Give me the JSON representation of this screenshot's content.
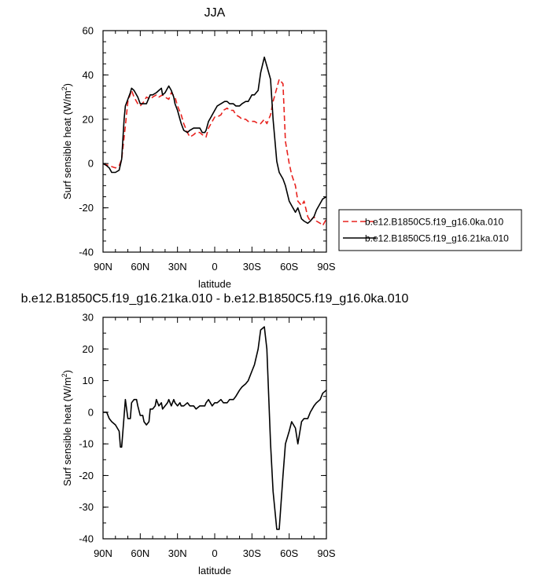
{
  "chart_data": [
    {
      "type": "line",
      "title": "JJA",
      "xlabel": "latitude",
      "ylabel": "Surf sensible heat (W/m",
      "ylabel_sup": "2",
      "ylabel_close": ")",
      "xlim": [
        90,
        -90
      ],
      "ylim": [
        -40,
        60
      ],
      "x_ticks": [
        90,
        60,
        30,
        0,
        -30,
        -60,
        -90
      ],
      "x_tick_labels": [
        "90N",
        "60N",
        "30N",
        "0",
        "30S",
        "60S",
        "90S"
      ],
      "y_ticks": [
        -40,
        -20,
        0,
        20,
        40,
        60
      ],
      "y_tick_labels": [
        "-40",
        "-20",
        "0",
        "20",
        "40",
        "60"
      ],
      "legend": "outside-right",
      "series": [
        {
          "name": "b.e12.B1850C5.f19_g16.0ka.010",
          "color": "#e8231f",
          "dash": "dashed",
          "x": [
            90,
            85,
            80,
            77,
            75,
            72,
            70,
            67,
            65,
            62,
            60,
            57,
            55,
            52,
            50,
            47,
            45,
            42,
            40,
            37,
            35,
            32,
            30,
            27,
            25,
            22,
            20,
            17,
            15,
            12,
            10,
            7,
            5,
            2,
            0,
            -2,
            -5,
            -7,
            -10,
            -12,
            -15,
            -17,
            -20,
            -22,
            -25,
            -27,
            -30,
            -32,
            -35,
            -37,
            -40,
            -42,
            -45,
            -47,
            -50,
            -52,
            -55,
            -57,
            -60,
            -62,
            -65,
            -67,
            -70,
            -72,
            -75,
            -77,
            -80,
            -82,
            -85,
            -87,
            -90
          ],
          "y": [
            0,
            -1,
            -2,
            -1,
            2,
            17,
            28,
            33,
            30,
            27,
            26,
            28,
            30,
            29,
            30,
            31,
            30,
            31,
            30,
            29,
            32,
            30,
            26,
            22,
            18,
            14,
            12,
            13,
            14,
            14,
            13,
            12,
            16,
            19,
            21,
            21,
            22,
            24,
            25,
            24,
            24,
            22,
            21,
            20,
            20,
            19,
            19,
            19,
            18,
            18,
            20,
            18,
            22,
            28,
            34,
            38,
            36,
            10,
            0,
            -5,
            -10,
            -17,
            -19,
            -17,
            -24,
            -26,
            -24,
            -26,
            -27,
            -28,
            -25
          ]
        },
        {
          "name": "b.e12.B1850C5.f19_g16.21ka.010",
          "color": "#000000",
          "dash": "solid",
          "x": [
            90,
            87,
            85,
            83,
            80,
            77,
            75,
            73,
            72,
            70,
            68,
            67,
            65,
            62,
            60,
            58,
            57,
            55,
            52,
            50,
            47,
            45,
            43,
            42,
            40,
            38,
            37,
            35,
            33,
            32,
            30,
            28,
            27,
            25,
            22,
            20,
            17,
            15,
            12,
            10,
            8,
            7,
            5,
            3,
            2,
            0,
            -2,
            -5,
            -8,
            -10,
            -12,
            -15,
            -17,
            -18,
            -20,
            -22,
            -25,
            -27,
            -30,
            -32,
            -35,
            -37,
            -40,
            -42,
            -45,
            -47,
            -50,
            -52,
            -55,
            -57,
            -60,
            -62,
            -65,
            -67,
            -70,
            -72,
            -75,
            -77,
            -80,
            -82,
            -85,
            -87,
            -90
          ],
          "y": [
            0,
            -1,
            -2,
            -4,
            -4,
            -3,
            2,
            20,
            26,
            29,
            32,
            34,
            33,
            30,
            27,
            27,
            27,
            27,
            31,
            31,
            32,
            33,
            34,
            31,
            32,
            34,
            35,
            33,
            30,
            27,
            24,
            20,
            18,
            15,
            14,
            15,
            16,
            16,
            16,
            14,
            14,
            15,
            19,
            21,
            22,
            24,
            26,
            27,
            28,
            28,
            27,
            27,
            26,
            26,
            26,
            27,
            28,
            28,
            31,
            31,
            33,
            41,
            48,
            44,
            38,
            20,
            1,
            -4,
            -7,
            -10,
            -17,
            -19,
            -22,
            -20,
            -25,
            -26,
            -27,
            -26,
            -24,
            -21,
            -18,
            -16,
            -15
          ]
        }
      ]
    },
    {
      "type": "line",
      "title": "b.e12.B1850C5.f19_g16.21ka.010 - b.e12.B1850C5.f19_g16.0ka.010",
      "xlabel": "latitude",
      "ylabel": "Surf sensible heat (W/m",
      "ylabel_sup": "2",
      "ylabel_close": ")",
      "xlim": [
        90,
        -90
      ],
      "ylim": [
        -40,
        30
      ],
      "x_ticks": [
        90,
        60,
        30,
        0,
        -30,
        -60,
        -90
      ],
      "x_tick_labels": [
        "90N",
        "60N",
        "30N",
        "0",
        "30S",
        "60S",
        "90S"
      ],
      "y_ticks": [
        -40,
        -30,
        -20,
        -10,
        0,
        10,
        20,
        30
      ],
      "y_tick_labels": [
        "-40",
        "-30",
        "-20",
        "-10",
        "0",
        "10",
        "20",
        "30"
      ],
      "series": [
        {
          "color": "#000000",
          "dash": "solid",
          "x": [
            90,
            87,
            85,
            83,
            80,
            77,
            76,
            75,
            72,
            70,
            68,
            67,
            65,
            63,
            62,
            60,
            58,
            57,
            55,
            53,
            52,
            50,
            48,
            47,
            45,
            43,
            42,
            40,
            38,
            37,
            35,
            33,
            32,
            30,
            28,
            27,
            25,
            22,
            20,
            17,
            15,
            12,
            10,
            8,
            7,
            5,
            2,
            0,
            -2,
            -5,
            -7,
            -10,
            -12,
            -15,
            -17,
            -20,
            -22,
            -25,
            -27,
            -30,
            -32,
            -35,
            -37,
            -40,
            -42,
            -45,
            -47,
            -50,
            -52,
            -55,
            -57,
            -60,
            -62,
            -65,
            -67,
            -70,
            -72,
            -75,
            -77,
            -80,
            -82,
            -85,
            -87,
            -90
          ],
          "y": [
            0,
            0,
            -2,
            -3,
            -4,
            -6,
            -11,
            -11,
            4,
            -2,
            -2,
            3,
            4,
            4,
            2,
            -1,
            -1,
            -3,
            -4,
            -3,
            1,
            1,
            2,
            4,
            2,
            3,
            1,
            2,
            3,
            4,
            2,
            4,
            3,
            2,
            3,
            2,
            2,
            3,
            2,
            2,
            1,
            2,
            2,
            2,
            3,
            4,
            2,
            3,
            3,
            4,
            3,
            3,
            4,
            4,
            5,
            7,
            8,
            9,
            10,
            13,
            15,
            20,
            26,
            27,
            20,
            -10,
            -25,
            -37,
            -37,
            -20,
            -10,
            -6,
            -3,
            -5,
            -10,
            -3,
            -2,
            -2,
            0,
            2,
            3,
            4,
            6,
            7
          ]
        }
      ]
    }
  ]
}
